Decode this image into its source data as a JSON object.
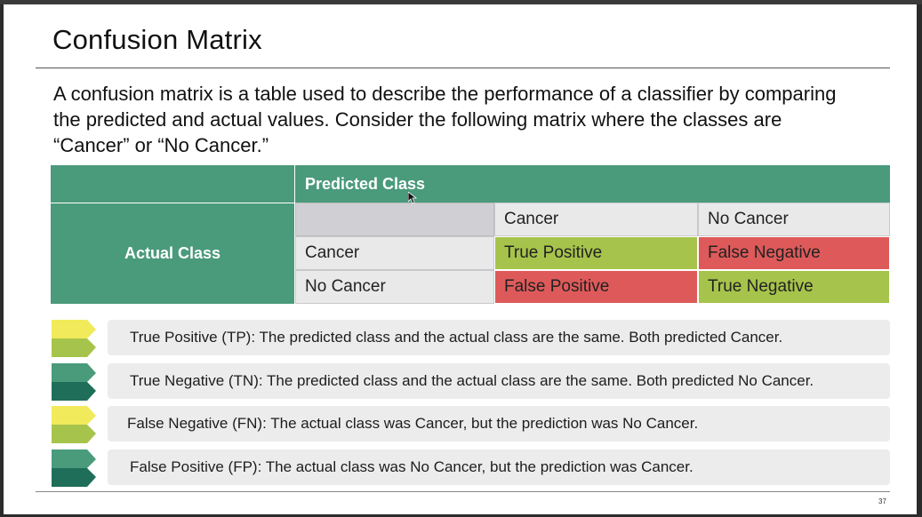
{
  "slide": {
    "title": "Confusion Matrix",
    "intro": "A confusion matrix is a table used to describe the performance of a classifier by comparing the predicted and actual values. Consider the following matrix where the classes are “Cancer” or “No Cancer.”",
    "page_number": "37"
  },
  "matrix": {
    "predicted_header": "Predicted Class",
    "actual_header": "Actual Class",
    "col_labels": [
      "Cancer",
      "No Cancer"
    ],
    "row_labels": [
      "Cancer",
      "No Cancer"
    ],
    "cells": [
      [
        "True Positive",
        "False Negative"
      ],
      [
        "False Positive",
        "True Negative"
      ]
    ],
    "colors": {
      "header": "#4a9a7c",
      "positive": "#a6c44b",
      "negative": "#de5a5a"
    }
  },
  "definitions": [
    {
      "text": "True Positive (TP): The predicted class and the actual class are the same. Both predicted Cancer.",
      "icon": "yellow-green-chevron-icon"
    },
    {
      "text": "True Negative (TN): The predicted class and the actual class are the same. Both predicted No Cancer.",
      "icon": "teal-chevron-icon"
    },
    {
      "text": "False Negative (FN): The actual class was Cancer, but the prediction was No Cancer.",
      "icon": "yellow-green-chevron-icon"
    },
    {
      "text": "False Positive (FP): The actual class was No Cancer, but the prediction was Cancer.",
      "icon": "teal-chevron-icon"
    }
  ]
}
